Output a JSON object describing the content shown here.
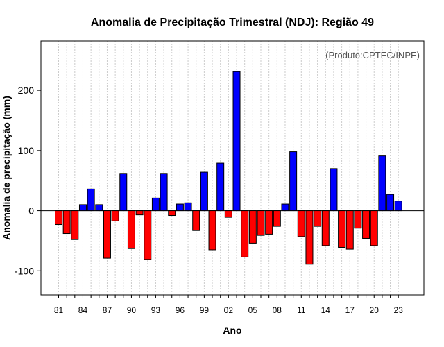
{
  "chart_data": {
    "type": "bar",
    "title": "Anomalia de Precipitação Trimestral (NDJ): Região 49",
    "xlabel": "Ano",
    "ylabel": "Anomalia de precipitação (mm)",
    "annotation": "(Produto:CPTEC/INPE)",
    "ylim": [
      -140,
      282
    ],
    "yticks": [
      -100,
      0,
      100,
      200
    ],
    "grid": "vertical dotted",
    "positive_color": "#0000ff",
    "negative_color": "#ff0000",
    "x_tick_labels": [
      "81",
      "84",
      "87",
      "90",
      "93",
      "96",
      "99",
      "02",
      "05",
      "08",
      "11",
      "14",
      "17",
      "20",
      "23"
    ],
    "categories": [
      "1981",
      "1982",
      "1983",
      "1984",
      "1985",
      "1986",
      "1987",
      "1988",
      "1989",
      "1990",
      "1991",
      "1992",
      "1993",
      "1994",
      "1995",
      "1996",
      "1997",
      "1998",
      "1999",
      "2000",
      "2001",
      "2002",
      "2003",
      "2004",
      "2005",
      "2006",
      "2007",
      "2008",
      "2009",
      "2010",
      "2011",
      "2012",
      "2013",
      "2014",
      "2015",
      "2016",
      "2017",
      "2018",
      "2019",
      "2020",
      "2021",
      "2022",
      "2023"
    ],
    "values": [
      -23,
      -38,
      -48,
      10,
      36,
      10,
      -79,
      -17,
      62,
      -63,
      -7,
      -81,
      21,
      62,
      -8,
      11,
      13,
      -33,
      64,
      -65,
      79,
      -11,
      231,
      -77,
      -54,
      -41,
      -39,
      -26,
      11,
      98,
      -43,
      -89,
      -26,
      -58,
      70,
      -61,
      -64,
      -29,
      -46,
      -58,
      91,
      27,
      16
    ]
  }
}
